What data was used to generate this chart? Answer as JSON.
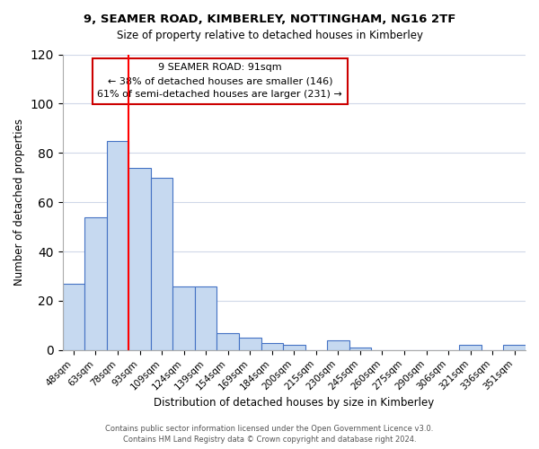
{
  "title": "9, SEAMER ROAD, KIMBERLEY, NOTTINGHAM, NG16 2TF",
  "subtitle": "Size of property relative to detached houses in Kimberley",
  "xlabel": "Distribution of detached houses by size in Kimberley",
  "ylabel": "Number of detached properties",
  "bar_labels": [
    "48sqm",
    "63sqm",
    "78sqm",
    "93sqm",
    "109sqm",
    "124sqm",
    "139sqm",
    "154sqm",
    "169sqm",
    "184sqm",
    "200sqm",
    "215sqm",
    "230sqm",
    "245sqm",
    "260sqm",
    "275sqm",
    "290sqm",
    "306sqm",
    "321sqm",
    "336sqm",
    "351sqm"
  ],
  "bar_values": [
    27,
    54,
    85,
    74,
    70,
    26,
    26,
    7,
    5,
    3,
    2,
    0,
    4,
    1,
    0,
    0,
    0,
    0,
    2,
    0,
    2
  ],
  "bar_color": "#c6d9f0",
  "bar_edge_color": "#4472c4",
  "ylim": [
    0,
    120
  ],
  "yticks": [
    0,
    20,
    40,
    60,
    80,
    100,
    120
  ],
  "vline_x": 3,
  "vline_color": "#ff0000",
  "annotation_title": "9 SEAMER ROAD: 91sqm",
  "annotation_line1": "← 38% of detached houses are smaller (146)",
  "annotation_line2": "61% of semi-detached houses are larger (231) →",
  "footer1": "Contains HM Land Registry data © Crown copyright and database right 2024.",
  "footer2": "Contains public sector information licensed under the Open Government Licence v3.0."
}
